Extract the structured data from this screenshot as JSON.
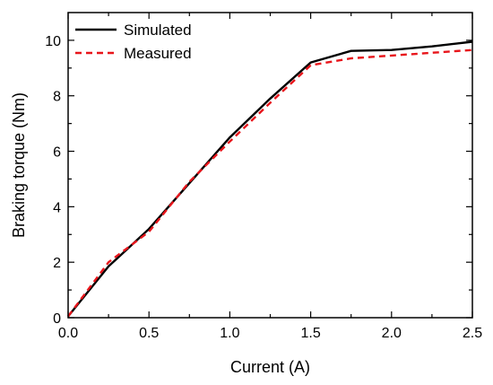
{
  "chart_data": {
    "type": "line",
    "xlabel": "Current (A)",
    "ylabel": "Braking torque (Nm)",
    "xlim": [
      0.0,
      2.5
    ],
    "ylim": [
      0,
      11
    ],
    "x_ticks": [
      "0.0",
      "0.5",
      "1.0",
      "1.5",
      "2.0",
      "2.5"
    ],
    "y_ticks": [
      "0",
      "2",
      "4",
      "6",
      "8",
      "10"
    ],
    "grid": false,
    "legend_position": "top-left",
    "series": [
      {
        "name": "Simulated",
        "color": "#000000",
        "line_style": "solid",
        "x": [
          0.0,
          0.25,
          0.5,
          0.75,
          1.0,
          1.25,
          1.5,
          1.75,
          2.0,
          2.25,
          2.5
        ],
        "y": [
          0.05,
          1.85,
          3.2,
          4.85,
          6.5,
          7.9,
          9.2,
          9.62,
          9.65,
          9.78,
          9.95
        ]
      },
      {
        "name": "Measured",
        "color": "#e8151b",
        "line_style": "dashed",
        "x": [
          0.0,
          0.25,
          0.5,
          0.75,
          1.0,
          1.25,
          1.5,
          1.75,
          2.0,
          2.25,
          2.5
        ],
        "y": [
          0.05,
          2.0,
          3.1,
          4.9,
          6.35,
          7.75,
          9.1,
          9.35,
          9.45,
          9.55,
          9.65
        ]
      }
    ]
  }
}
